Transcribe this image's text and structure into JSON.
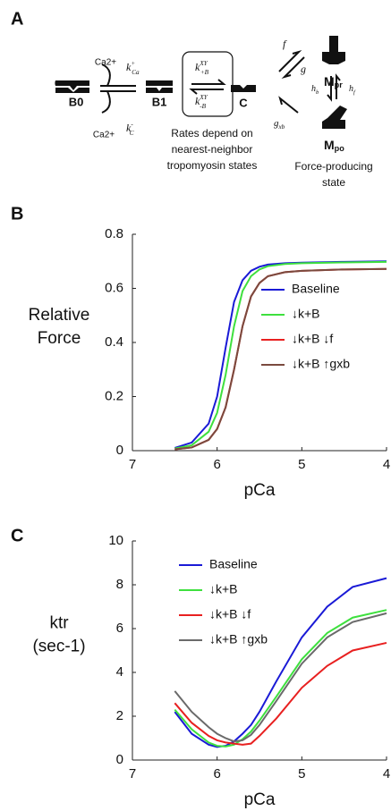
{
  "diagram": {
    "panel": "A",
    "states": [
      "B0",
      "B1",
      "C"
    ],
    "myosin": [
      {
        "base": "M",
        "sub": "pr"
      },
      {
        "base": "M",
        "sub": "po"
      }
    ],
    "calcium": [
      "Ca2+",
      "Ca2+"
    ],
    "rates": {
      "kCa_on": {
        "base": "k",
        "sub": "Ca",
        "sup": "+"
      },
      "kCa_off": {
        "base": "k",
        "sub": "C",
        "sup": "-"
      },
      "kB_on": {
        "base": "k",
        "sub": "+B",
        "sup": "XY"
      },
      "kB_off": {
        "base": "k",
        "sub": "-B",
        "sup": "XY"
      },
      "f": "f",
      "g": "g",
      "gxb": {
        "base": "g",
        "sub": "xb"
      },
      "hb": {
        "base": "h",
        "sub": "b"
      },
      "hf": {
        "base": "h",
        "sub": "f"
      }
    },
    "note_rates": [
      "Rates depend on",
      "nearest-neighbor",
      "tropomyosin states"
    ],
    "note_force": [
      "Force-producing",
      "state"
    ]
  },
  "chart_data": [
    {
      "type": "line",
      "panel": "B",
      "ylabel": [
        "Relative",
        "Force"
      ],
      "xlabel": "pCa",
      "x": [
        6.5,
        6.3,
        6.1,
        6.0,
        5.9,
        5.8,
        5.7,
        5.6,
        5.5,
        5.4,
        5.2,
        5.0,
        4.5,
        4.0
      ],
      "xlim": [
        7,
        4
      ],
      "xticks": [
        7,
        6,
        5,
        4
      ],
      "ylim": [
        0,
        0.8
      ],
      "yticks": [
        0,
        0.2,
        0.4,
        0.6,
        0.8
      ],
      "legend": "center right",
      "series": [
        {
          "name": "Baseline",
          "color": "#1a1ad6",
          "values": [
            0.01,
            0.03,
            0.1,
            0.2,
            0.38,
            0.55,
            0.63,
            0.665,
            0.68,
            0.688,
            0.693,
            0.695,
            0.698,
            0.7
          ]
        },
        {
          "name": "↓k+B",
          "color": "#3ee03e",
          "values": [
            0.008,
            0.02,
            0.07,
            0.14,
            0.28,
            0.46,
            0.59,
            0.645,
            0.67,
            0.682,
            0.69,
            0.693,
            0.696,
            0.698
          ]
        },
        {
          "name": "↓k+B ↓f",
          "color": "#e82020",
          "values": [
            0.005,
            0.012,
            0.04,
            0.08,
            0.16,
            0.3,
            0.46,
            0.57,
            0.62,
            0.645,
            0.66,
            0.665,
            0.67,
            0.672
          ]
        },
        {
          "name": "↓k+B ↑gxb",
          "color": "#7a4a3e",
          "values": [
            0.005,
            0.012,
            0.04,
            0.08,
            0.16,
            0.3,
            0.46,
            0.57,
            0.62,
            0.645,
            0.66,
            0.665,
            0.67,
            0.672
          ]
        }
      ]
    },
    {
      "type": "line",
      "panel": "C",
      "ylabel": [
        "ktr",
        "(sec-1)"
      ],
      "xlabel": "pCa",
      "x": [
        6.5,
        6.3,
        6.1,
        6.0,
        5.9,
        5.8,
        5.7,
        5.6,
        5.5,
        5.3,
        5.0,
        4.7,
        4.4,
        4.0
      ],
      "xlim": [
        7,
        4
      ],
      "xticks": [
        7,
        6,
        5,
        4
      ],
      "ylim": [
        0,
        10
      ],
      "yticks": [
        0,
        2,
        4,
        6,
        8,
        10
      ],
      "legend": "upper left",
      "series": [
        {
          "name": "Baseline",
          "color": "#1a1ad6",
          "values": [
            2.2,
            1.2,
            0.7,
            0.6,
            0.65,
            0.85,
            1.2,
            1.6,
            2.2,
            3.6,
            5.6,
            7.0,
            7.9,
            8.3
          ]
        },
        {
          "name": "↓k+B",
          "color": "#3ee03e",
          "values": [
            2.3,
            1.4,
            0.8,
            0.65,
            0.62,
            0.7,
            0.95,
            1.3,
            1.8,
            2.9,
            4.6,
            5.8,
            6.5,
            6.85
          ]
        },
        {
          "name": "↓k+B ↓f",
          "color": "#e82020",
          "values": [
            2.6,
            1.7,
            1.1,
            0.9,
            0.8,
            0.75,
            0.7,
            0.75,
            1.1,
            1.9,
            3.3,
            4.3,
            5.0,
            5.35
          ]
        },
        {
          "name": "↓k+B ↑gxb",
          "color": "#6a6a6a",
          "values": [
            3.15,
            2.2,
            1.5,
            1.2,
            1.0,
            0.85,
            0.9,
            1.15,
            1.6,
            2.7,
            4.4,
            5.6,
            6.3,
            6.7
          ]
        }
      ]
    }
  ]
}
